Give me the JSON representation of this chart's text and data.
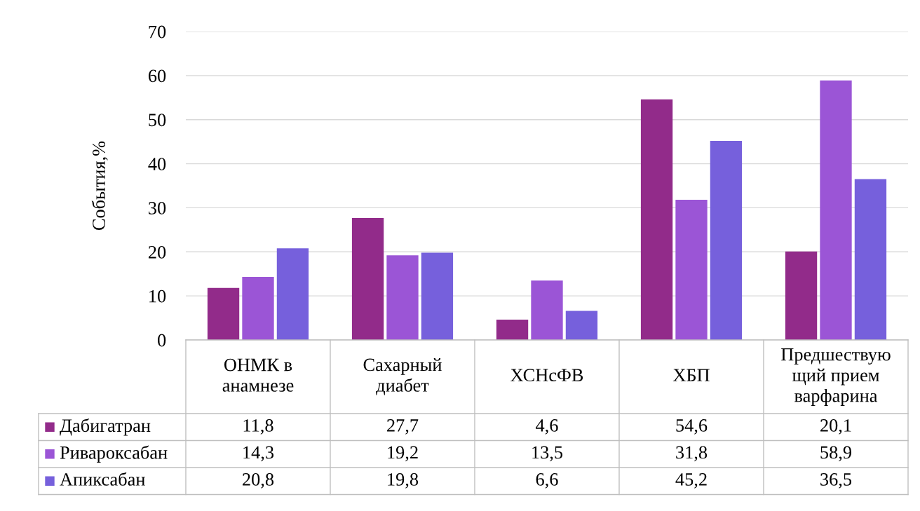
{
  "chart_data": {
    "type": "bar",
    "ylabel": "События,%",
    "categories": [
      "ОНМК в анамнезе",
      "Сахарный диабет",
      "ХСНсФВ",
      "ХБП",
      "Предшествующий прием варфарина"
    ],
    "series": [
      {
        "name": "Дабигатран",
        "color": "#922b8a",
        "values": [
          11.8,
          27.7,
          4.6,
          54.6,
          20.1
        ],
        "value_labels": [
          "11,8",
          "27,7",
          "4,6",
          "54,6",
          "20,1"
        ]
      },
      {
        "name": "Ривароксабан",
        "color": "#9b55d6",
        "values": [
          14.3,
          19.2,
          13.5,
          31.8,
          58.9
        ],
        "value_labels": [
          "14,3",
          "19,2",
          "13,5",
          "31,8",
          "58,9"
        ]
      },
      {
        "name": "Апиксабан",
        "color": "#7660dc",
        "values": [
          20.8,
          19.8,
          6.6,
          45.2,
          36.5
        ],
        "value_labels": [
          "20,8",
          "19,8",
          "6,6",
          "45,2",
          "36,5"
        ]
      }
    ],
    "ylim": [
      0,
      70
    ],
    "yticks": [
      0,
      10,
      20,
      30,
      40,
      50,
      60,
      70
    ],
    "grid": "y",
    "legend": "bottom"
  }
}
